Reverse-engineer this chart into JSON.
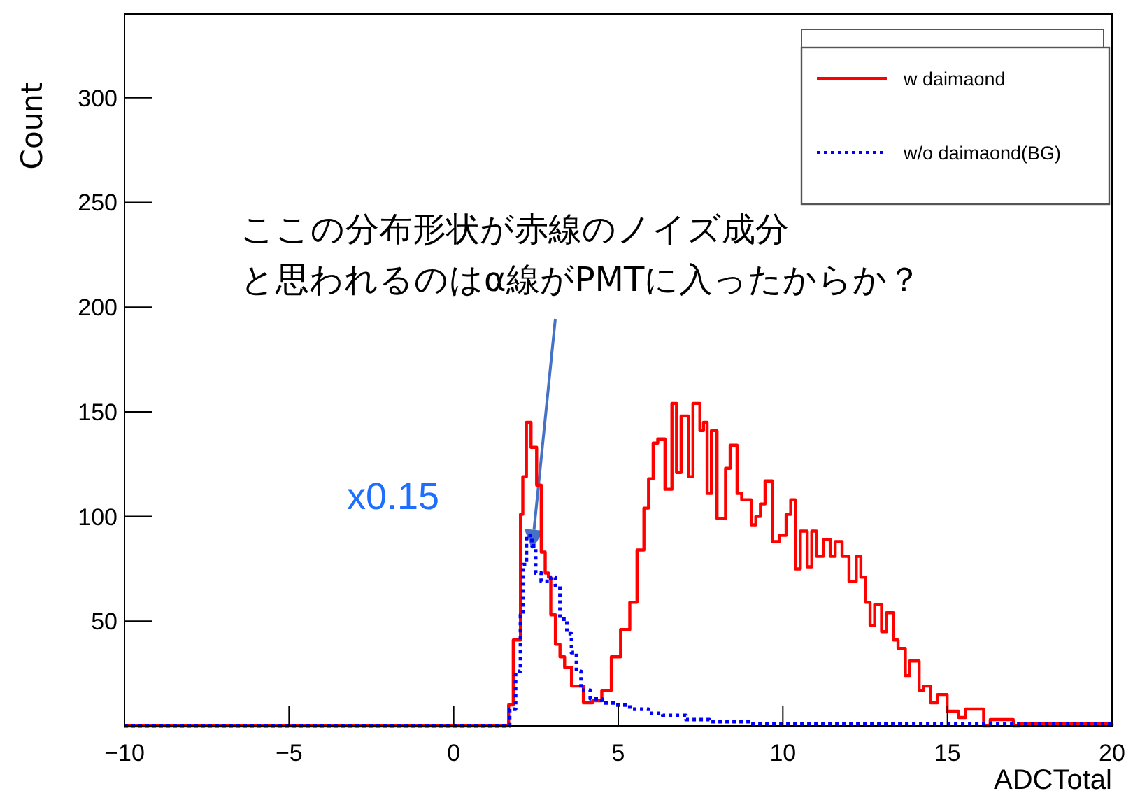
{
  "chart_data": {
    "type": "step",
    "xlabel": "ADCTotal",
    "ylabel": "Count",
    "xlim": [
      -10,
      20
    ],
    "xticks": [
      {
        "value": -10,
        "label": "−10"
      },
      {
        "value": -5,
        "label": "−5"
      },
      0,
      5,
      10,
      15,
      20
    ],
    "ylim": [
      0,
      340
    ],
    "yticks": [
      50,
      100,
      150,
      200,
      250,
      300
    ],
    "legend": "top right",
    "grid": false,
    "annotations": [
      "ここの分布形状が赤線のノイズ成分",
      {
        "text": "と思われるのはα線がPMTに入ったからか？",
        "x": 2.21,
        "y": 91
      },
      "x0.15"
    ],
    "series": [
      {
        "name": "w daimaond",
        "color": "#ff0000",
        "line_style": "solid",
        "x": [
          -10,
          1.67,
          1.81,
          2.03,
          2.1,
          2.21,
          2.35,
          2.52,
          2.66,
          2.78,
          2.88,
          2.95,
          3.09,
          3.23,
          3.37,
          3.58,
          3.94,
          4.22,
          4.5,
          4.79,
          5.07,
          5.35,
          5.57,
          5.78,
          5.92,
          6.06,
          6.2,
          6.42,
          6.63,
          6.77,
          6.91,
          7.13,
          7.27,
          7.48,
          7.59,
          7.7,
          7.83,
          8.0,
          8.26,
          8.33,
          8.4,
          8.61,
          8.75,
          9.04,
          9.18,
          9.32,
          9.46,
          9.68,
          9.89,
          10.1,
          10.24,
          10.38,
          10.53,
          10.74,
          10.88,
          11.02,
          11.23,
          11.44,
          11.59,
          11.8,
          12.01,
          12.23,
          12.37,
          12.51,
          12.65,
          12.79,
          13.0,
          13.15,
          13.36,
          13.5,
          13.72,
          13.85,
          14.14,
          14.28,
          14.49,
          14.7,
          14.99,
          15.34,
          15.55,
          16.1,
          16.3,
          17.0,
          17.2,
          20
        ],
        "values": [
          0,
          10,
          41,
          101,
          119,
          145,
          133,
          115,
          83,
          73,
          71,
          53,
          39,
          33,
          28,
          19,
          11,
          12,
          17,
          33,
          46,
          59,
          84,
          104,
          118,
          135,
          137,
          113,
          154,
          121,
          148,
          119,
          154,
          141,
          145,
          111,
          141,
          99,
          123,
          123,
          134,
          111,
          108,
          96,
          100,
          106,
          117,
          88,
          91,
          101,
          108,
          75,
          93,
          76,
          93,
          81,
          89,
          81,
          88,
          81,
          69,
          81,
          71,
          59,
          48,
          58,
          45,
          54,
          41,
          37,
          24,
          31,
          17,
          19,
          11,
          15,
          7,
          4,
          8,
          0,
          3,
          0,
          1,
          0
        ]
      },
      {
        "name": "w/o daimaond(BG)",
        "color": "#0000ff",
        "line_style": "dotted",
        "x": [
          -10,
          1.7,
          1.88,
          2.03,
          2.1,
          2.21,
          2.38,
          2.49,
          2.66,
          2.8,
          2.95,
          3.09,
          3.23,
          3.44,
          3.58,
          3.73,
          3.87,
          4.15,
          4.5,
          4.93,
          5.35,
          5.92,
          6.35,
          7.06,
          7.77,
          9.0,
          20
        ],
        "values": [
          0,
          8,
          26,
          53,
          77,
          91,
          86,
          73,
          69,
          69,
          71,
          67,
          51,
          44,
          35,
          26,
          17,
          13,
          11,
          10,
          8,
          6,
          5,
          3,
          2,
          1,
          0
        ]
      }
    ]
  }
}
